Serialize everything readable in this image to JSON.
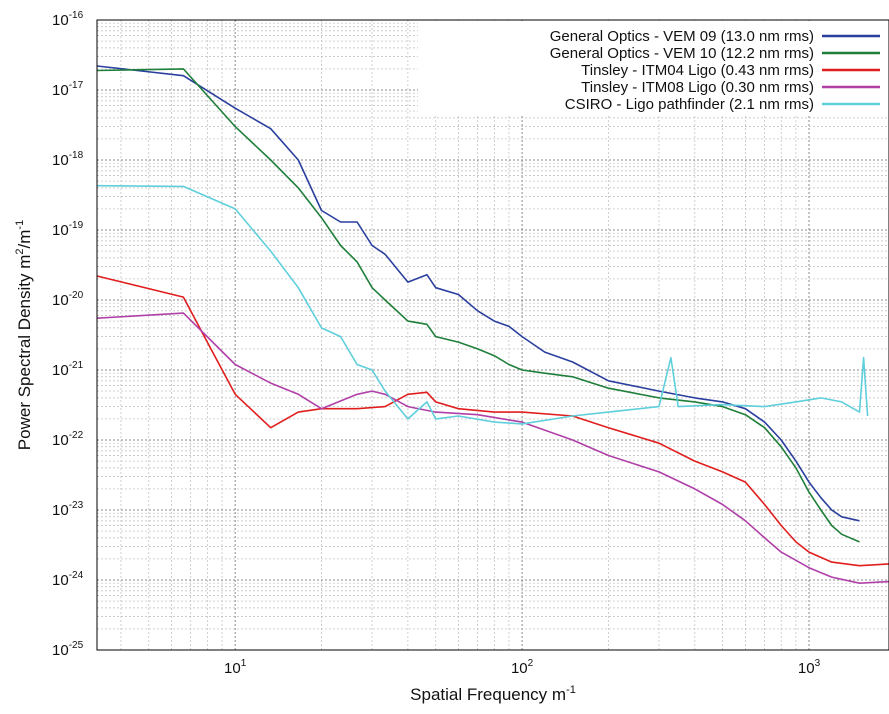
{
  "chart_data": {
    "type": "line",
    "title": "",
    "xlabel": "Spatial Frequency m",
    "xlabel_sup": "-1",
    "ylabel": "Power Spectral Density m",
    "ylabel_sup1": "2",
    "ylabel_mid": "/m",
    "ylabel_sup2": "-1",
    "x_scale": "log",
    "y_scale": "log",
    "xlim": [
      3.3,
      1900
    ],
    "ylim": [
      1e-25,
      1e-16
    ],
    "grid": true,
    "legend_position": "top-right",
    "x_ticks": [
      {
        "value": 10,
        "base": "10",
        "exp": "1"
      },
      {
        "value": 100,
        "base": "10",
        "exp": "2"
      },
      {
        "value": 1000,
        "base": "10",
        "exp": "3"
      }
    ],
    "y_ticks": [
      {
        "value": 1e-16,
        "base": "10",
        "exp": "-16"
      },
      {
        "value": 1e-17,
        "base": "10",
        "exp": "-17"
      },
      {
        "value": 1e-18,
        "base": "10",
        "exp": "-18"
      },
      {
        "value": 1e-19,
        "base": "10",
        "exp": "-19"
      },
      {
        "value": 1e-20,
        "base": "10",
        "exp": "-20"
      },
      {
        "value": 1e-21,
        "base": "10",
        "exp": "-21"
      },
      {
        "value": 1e-22,
        "base": "10",
        "exp": "-22"
      },
      {
        "value": 1e-23,
        "base": "10",
        "exp": "-23"
      },
      {
        "value": 1e-24,
        "base": "10",
        "exp": "-24"
      },
      {
        "value": 1e-25,
        "base": "10",
        "exp": "-25"
      }
    ],
    "series": [
      {
        "name": "General Optics - VEM 09 (13.0 nm rms)",
        "color": "#2a3f9e",
        "points": [
          [
            3.3,
            2.2e-17
          ],
          [
            6.6,
            1.6e-17
          ],
          [
            10,
            5.5e-18
          ],
          [
            13.3,
            2.8e-18
          ],
          [
            16.6,
            1e-18
          ],
          [
            20,
            1.9e-19
          ],
          [
            23.3,
            1.3e-19
          ],
          [
            26.6,
            1.3e-19
          ],
          [
            30,
            6e-20
          ],
          [
            33.3,
            4.5e-20
          ],
          [
            40,
            1.8e-20
          ],
          [
            46.6,
            2.3e-20
          ],
          [
            50,
            1.5e-20
          ],
          [
            60,
            1.2e-20
          ],
          [
            70,
            7e-21
          ],
          [
            80,
            5e-21
          ],
          [
            90,
            4.2e-21
          ],
          [
            100,
            3e-21
          ],
          [
            120,
            1.8e-21
          ],
          [
            150,
            1.3e-21
          ],
          [
            200,
            7e-22
          ],
          [
            300,
            5e-22
          ],
          [
            400,
            4e-22
          ],
          [
            500,
            3.5e-22
          ],
          [
            600,
            2.8e-22
          ],
          [
            700,
            1.8e-22
          ],
          [
            800,
            1e-22
          ],
          [
            900,
            5e-23
          ],
          [
            1000,
            2.5e-23
          ],
          [
            1100,
            1.5e-23
          ],
          [
            1200,
            1e-23
          ],
          [
            1300,
            8e-24
          ],
          [
            1500,
            7e-24
          ]
        ]
      },
      {
        "name": "General Optics - VEM 10 (12.2 nm rms)",
        "color": "#1f7f3a",
        "points": [
          [
            3.3,
            1.9e-17
          ],
          [
            6.6,
            2e-17
          ],
          [
            10,
            3e-18
          ],
          [
            13.3,
            1e-18
          ],
          [
            16.6,
            4e-19
          ],
          [
            20,
            1.5e-19
          ],
          [
            23.3,
            6e-20
          ],
          [
            26.6,
            3.5e-20
          ],
          [
            30,
            1.5e-20
          ],
          [
            33.3,
            1e-20
          ],
          [
            40,
            5e-21
          ],
          [
            46.6,
            4.5e-21
          ],
          [
            50,
            3e-21
          ],
          [
            60,
            2.5e-21
          ],
          [
            70,
            2e-21
          ],
          [
            80,
            1.6e-21
          ],
          [
            90,
            1.2e-21
          ],
          [
            100,
            1e-21
          ],
          [
            120,
            9e-22
          ],
          [
            150,
            8e-22
          ],
          [
            200,
            5.5e-22
          ],
          [
            300,
            4e-22
          ],
          [
            400,
            3.5e-22
          ],
          [
            500,
            3e-22
          ],
          [
            600,
            2.3e-22
          ],
          [
            700,
            1.5e-22
          ],
          [
            800,
            8e-23
          ],
          [
            900,
            4e-23
          ],
          [
            1000,
            1.8e-23
          ],
          [
            1100,
            1e-23
          ],
          [
            1200,
            6e-24
          ],
          [
            1300,
            4.5e-24
          ],
          [
            1500,
            3.5e-24
          ]
        ]
      },
      {
        "name": "Tinsley - ITM04 Ligo (0.43 nm rms)",
        "color": "#e01e1e",
        "points": [
          [
            3.3,
            2.2e-20
          ],
          [
            6.6,
            1.1e-20
          ],
          [
            8,
            2.5e-21
          ],
          [
            10,
            4.5e-22
          ],
          [
            13.3,
            1.5e-22
          ],
          [
            16.6,
            2.5e-22
          ],
          [
            20,
            2.8e-22
          ],
          [
            26.6,
            2.8e-22
          ],
          [
            33.3,
            3e-22
          ],
          [
            40,
            4.5e-22
          ],
          [
            46.6,
            4.8e-22
          ],
          [
            50,
            3.5e-22
          ],
          [
            60,
            2.8e-22
          ],
          [
            80,
            2.5e-22
          ],
          [
            100,
            2.5e-22
          ],
          [
            150,
            2.2e-22
          ],
          [
            200,
            1.5e-22
          ],
          [
            300,
            9e-23
          ],
          [
            400,
            5e-23
          ],
          [
            500,
            3.5e-23
          ],
          [
            600,
            2.5e-23
          ],
          [
            700,
            1.2e-23
          ],
          [
            800,
            6e-24
          ],
          [
            900,
            3.5e-24
          ],
          [
            1000,
            2.5e-24
          ],
          [
            1200,
            1.8e-24
          ],
          [
            1500,
            1.6e-24
          ],
          [
            1900,
            1.7e-24
          ]
        ]
      },
      {
        "name": "Tinsley - ITM08 Ligo (0.30 nm rms)",
        "color": "#b040a8",
        "points": [
          [
            3.3,
            5.5e-21
          ],
          [
            6.6,
            6.5e-21
          ],
          [
            10,
            1.2e-21
          ],
          [
            13.3,
            6.5e-22
          ],
          [
            16.6,
            4.5e-22
          ],
          [
            20,
            2.8e-22
          ],
          [
            26.6,
            4.5e-22
          ],
          [
            30,
            5e-22
          ],
          [
            33.3,
            4.5e-22
          ],
          [
            40,
            3e-22
          ],
          [
            50,
            2.5e-22
          ],
          [
            70,
            2.3e-22
          ],
          [
            100,
            1.8e-22
          ],
          [
            150,
            1e-22
          ],
          [
            200,
            6e-23
          ],
          [
            300,
            3.5e-23
          ],
          [
            400,
            2e-23
          ],
          [
            500,
            1.2e-23
          ],
          [
            600,
            7e-24
          ],
          [
            700,
            4e-24
          ],
          [
            800,
            2.5e-24
          ],
          [
            1000,
            1.5e-24
          ],
          [
            1200,
            1.1e-24
          ],
          [
            1500,
            9e-25
          ],
          [
            1900,
            9.5e-25
          ]
        ]
      },
      {
        "name": "CSIRO - Ligo pathfinder (2.1 nm rms)",
        "color": "#5fcfdc",
        "points": [
          [
            3.3,
            4.3e-19
          ],
          [
            6.6,
            4.2e-19
          ],
          [
            10,
            2e-19
          ],
          [
            13.3,
            5e-20
          ],
          [
            16.6,
            1.5e-20
          ],
          [
            20,
            4e-21
          ],
          [
            23.3,
            3e-21
          ],
          [
            26.6,
            1.2e-21
          ],
          [
            30,
            1e-21
          ],
          [
            33.3,
            5e-22
          ],
          [
            40,
            2e-22
          ],
          [
            46.6,
            3.5e-22
          ],
          [
            50,
            2e-22
          ],
          [
            60,
            2.2e-22
          ],
          [
            80,
            1.8e-22
          ],
          [
            100,
            1.7e-22
          ],
          [
            150,
            2.2e-22
          ],
          [
            200,
            2.5e-22
          ],
          [
            300,
            3e-22
          ],
          [
            330,
            1.5e-21
          ],
          [
            350,
            3e-22
          ],
          [
            500,
            3.2e-22
          ],
          [
            700,
            3e-22
          ],
          [
            900,
            3.5e-22
          ],
          [
            1100,
            4e-22
          ],
          [
            1300,
            3.5e-22
          ],
          [
            1500,
            2.5e-22
          ],
          [
            1550,
            1.5e-21
          ],
          [
            1600,
            2.2e-22
          ]
        ]
      }
    ]
  }
}
